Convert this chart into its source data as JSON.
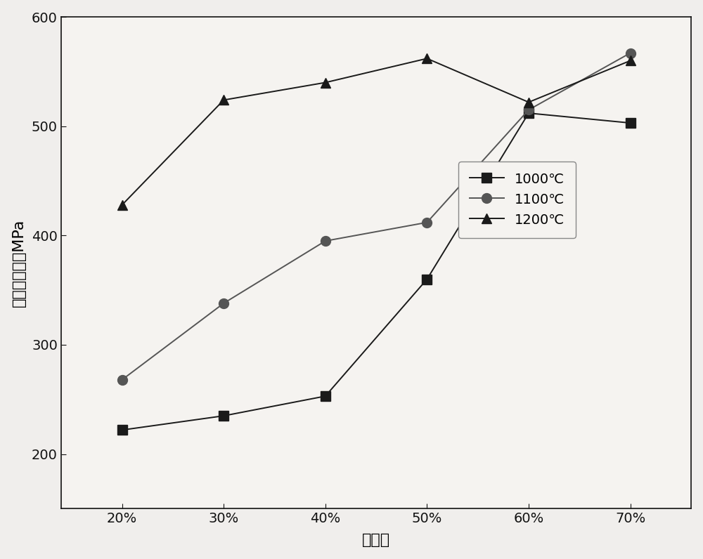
{
  "x_labels": [
    "20%",
    "30%",
    "40%",
    "50%",
    "60%",
    "70%"
  ],
  "x_values": [
    20,
    30,
    40,
    50,
    60,
    70
  ],
  "series": [
    {
      "label": "1000℃",
      "values": [
        222,
        235,
        253,
        360,
        512,
        503
      ],
      "color": "#1a1a1a",
      "marker": "s",
      "markersize": 10
    },
    {
      "label": "1100℃",
      "values": [
        268,
        338,
        395,
        412,
        515,
        567
      ],
      "color": "#555555",
      "marker": "o",
      "markersize": 10
    },
    {
      "label": "1200℃",
      "values": [
        428,
        524,
        540,
        562,
        522,
        560
      ],
      "color": "#1a1a1a",
      "marker": "^",
      "markersize": 10
    }
  ],
  "ylabel": "抗拉结合强度MPa",
  "xlabel": "压下量",
  "ylim": [
    150,
    600
  ],
  "yticks": [
    200,
    300,
    400,
    500,
    600
  ],
  "fig_background": "#f0eeec",
  "plot_background": "#f5f3f0",
  "linewidth": 1.4,
  "label_fontsize": 16,
  "tick_fontsize": 14,
  "legend_fontsize": 14
}
